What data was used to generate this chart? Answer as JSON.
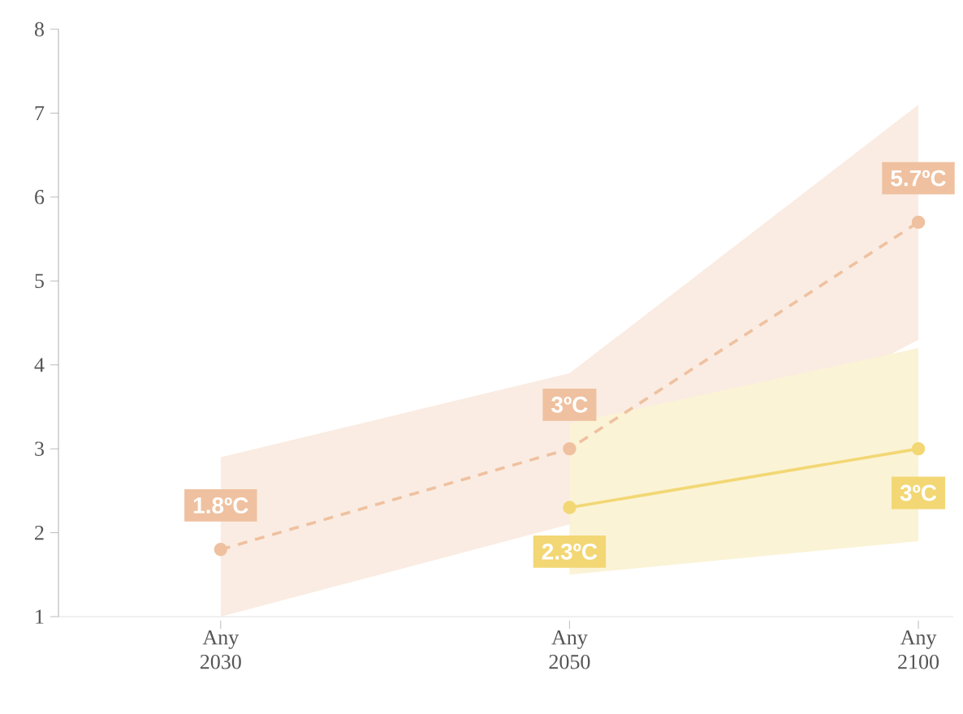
{
  "chart_data": {
    "type": "line",
    "categories": [
      "Any 2030",
      "Any 2050",
      "Any 2100"
    ],
    "ylim": [
      1,
      8
    ],
    "yticks": [
      1,
      2,
      3,
      4,
      5,
      6,
      7,
      8
    ],
    "grid": false,
    "marker": "circle",
    "series": [
      {
        "color": "#efc1a0",
        "line_style": "dashed",
        "values": [
          1.8,
          3,
          5.7
        ],
        "value_labels": [
          "1.8ºC",
          "3ºC",
          "5.7ºC"
        ],
        "lower": [
          1.0,
          2.1,
          4.3
        ],
        "upper": [
          2.9,
          3.9,
          7.1
        ]
      },
      {
        "color": "#f2d774",
        "line_style": "solid",
        "values": [
          null,
          2.3,
          3
        ],
        "value_labels": [
          null,
          "2.3ºC",
          "3ºC"
        ],
        "lower": [
          null,
          1.5,
          1.9
        ],
        "upper": [
          null,
          3.3,
          4.2
        ]
      }
    ]
  }
}
